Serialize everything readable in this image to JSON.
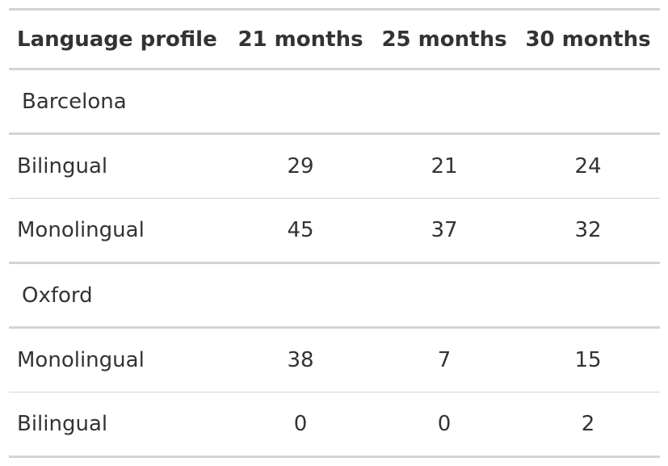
{
  "table": {
    "headers": [
      "Language profile",
      "21 months",
      "25 months",
      "30 months"
    ],
    "groups": [
      {
        "name": "Barcelona",
        "rows": [
          {
            "label": "Bilingual",
            "values": [
              "29",
              "21",
              "24"
            ]
          },
          {
            "label": "Monolingual",
            "values": [
              "45",
              "37",
              "32"
            ]
          }
        ]
      },
      {
        "name": "Oxford",
        "rows": [
          {
            "label": "Monolingual",
            "values": [
              "38",
              "7",
              "15"
            ]
          },
          {
            "label": "Bilingual",
            "values": [
              "0",
              "0",
              "2"
            ]
          }
        ]
      }
    ]
  }
}
